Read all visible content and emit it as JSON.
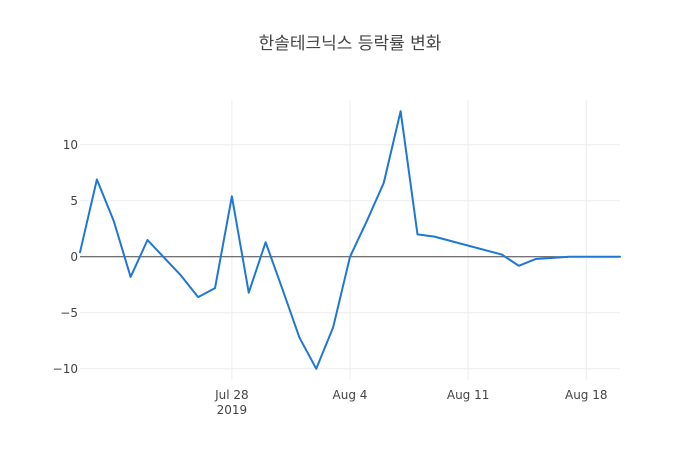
{
  "chart_data": {
    "type": "line",
    "title": "한솔테크닉스 등락률 변화",
    "xlabel": "",
    "ylabel": "",
    "x_type": "date",
    "x": [
      "2019-07-19",
      "2019-07-20",
      "2019-07-21",
      "2019-07-22",
      "2019-07-23",
      "2019-07-25",
      "2019-07-26",
      "2019-07-27",
      "2019-07-28",
      "2019-07-29",
      "2019-07-30",
      "2019-07-31",
      "2019-08-01",
      "2019-08-02",
      "2019-08-03",
      "2019-08-04",
      "2019-08-05",
      "2019-08-06",
      "2019-08-07",
      "2019-08-08",
      "2019-08-09",
      "2019-08-13",
      "2019-08-14",
      "2019-08-15",
      "2019-08-17",
      "2019-08-19",
      "2019-08-20"
    ],
    "series": [
      {
        "values": [
          0.4,
          6.9,
          3.2,
          -1.8,
          1.5,
          -1.7,
          -3.6,
          -2.8,
          5.4,
          -3.2,
          1.3,
          -2.9,
          -7.2,
          -10.0,
          -6.3,
          0.0,
          3.2,
          6.6,
          13.0,
          2.0,
          1.8,
          0.2,
          -0.8,
          -0.2,
          0.0,
          0.0,
          0.0
        ]
      }
    ],
    "ylim": [
      -11,
      14
    ],
    "yticks": [
      -10,
      -5,
      0,
      5,
      10
    ],
    "ytick_labels": [
      "−10",
      "−5",
      "0",
      "5",
      "10"
    ],
    "xticks": [
      "2019-07-28",
      "2019-08-04",
      "2019-08-11",
      "2019-08-18"
    ],
    "xtick_labels": [
      "Jul 28",
      "Aug 4",
      "Aug 11",
      "Aug 18"
    ],
    "xtick_year_label": "2019",
    "grid": true,
    "legend": "none",
    "colors": {
      "line": "#1f77d4",
      "grid": "#ececec",
      "zero_line": "#444444",
      "text": "#444444"
    }
  }
}
